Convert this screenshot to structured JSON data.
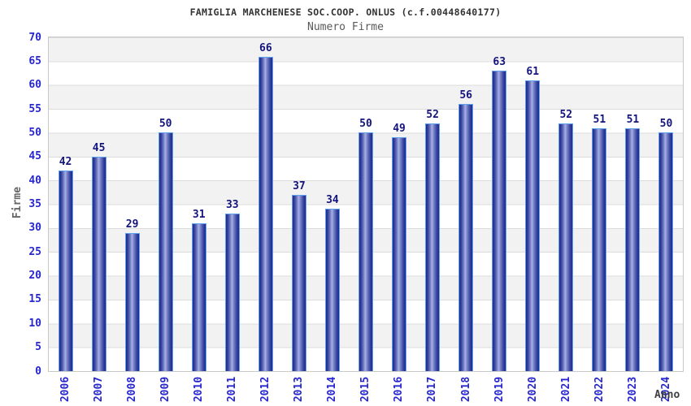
{
  "chart_data": {
    "type": "bar",
    "title": "FAMIGLIA MARCHENESE SOC.COOP. ONLUS (c.f.00448640177)",
    "subtitle": "Numero Firme",
    "xlabel": "Anno",
    "ylabel": "Firme",
    "categories": [
      "2006",
      "2007",
      "2008",
      "2009",
      "2010",
      "2011",
      "2012",
      "2013",
      "2014",
      "2015",
      "2016",
      "2017",
      "2018",
      "2019",
      "2020",
      "2021",
      "2022",
      "2023",
      "2024"
    ],
    "values": [
      42,
      45,
      29,
      50,
      31,
      33,
      66,
      37,
      34,
      50,
      49,
      52,
      56,
      63,
      61,
      52,
      51,
      51,
      50
    ],
    "ylim": [
      0,
      70
    ],
    "ytick_step": 5,
    "yticks": [
      "0",
      "5",
      "10",
      "15",
      "20",
      "25",
      "30",
      "35",
      "40",
      "45",
      "50",
      "55",
      "60",
      "65",
      "70"
    ],
    "legend": "none",
    "grid": "horizontal gridlines every 5 units with alternating gray/white bands",
    "value_labels": "shown above each bar",
    "colors": {
      "bar_dark": "#1e288a",
      "bar_mid": "#3a46a2",
      "bar_mid_light": "#7e88ca",
      "bar_highlight": "#a8b1e6",
      "bar_border": "#61a0ec",
      "tick_text": "#2727cc",
      "value_label_text": "#14147e",
      "title_text": "#333333",
      "subtitle_text": "#595959",
      "axis_label_text": "#666666",
      "band_gray": "#f2f2f2",
      "band_white": "#ffffff",
      "gridline": "#dcdcdc",
      "plot_border": "#c9c9c9"
    }
  }
}
